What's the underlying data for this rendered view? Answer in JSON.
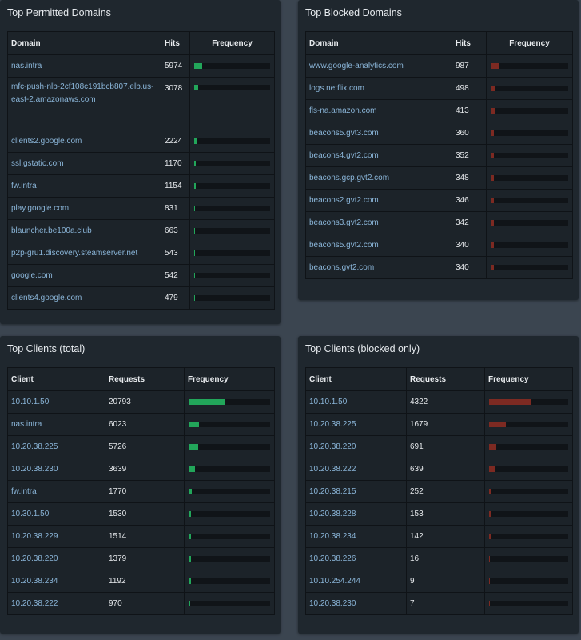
{
  "permitted": {
    "title": "Top Permitted Domains",
    "headers": {
      "col1": "Domain",
      "col2": "Hits",
      "col3": "Frequency"
    },
    "rows": [
      {
        "name": "nas.intra",
        "count": "5974",
        "pct": 0.108
      },
      {
        "name": "mfc-push-nlb-2cf108c191bcb807.elb.us-east-2.amazonaws.com",
        "count": "3078",
        "pct": 0.056
      },
      {
        "name": "clients2.google.com",
        "count": "2224",
        "pct": 0.04
      },
      {
        "name": "ssl.gstatic.com",
        "count": "1170",
        "pct": 0.021
      },
      {
        "name": "fw.intra",
        "count": "1154",
        "pct": 0.021
      },
      {
        "name": "play.google.com",
        "count": "831",
        "pct": 0.015
      },
      {
        "name": "blauncher.be100a.club",
        "count": "663",
        "pct": 0.012
      },
      {
        "name": "p2p-gru1.discovery.steamserver.net",
        "count": "543",
        "pct": 0.01
      },
      {
        "name": "google.com",
        "count": "542",
        "pct": 0.01
      },
      {
        "name": "clients4.google.com",
        "count": "479",
        "pct": 0.009
      }
    ]
  },
  "blocked": {
    "title": "Top Blocked Domains",
    "headers": {
      "col1": "Domain",
      "col2": "Hits",
      "col3": "Frequency"
    },
    "rows": [
      {
        "name": "www.google-analytics.com",
        "count": "987",
        "pct": 0.115
      },
      {
        "name": "logs.netflix.com",
        "count": "498",
        "pct": 0.058
      },
      {
        "name": "fls-na.amazon.com",
        "count": "413",
        "pct": 0.048
      },
      {
        "name": "beacons5.gvt3.com",
        "count": "360",
        "pct": 0.042
      },
      {
        "name": "beacons4.gvt2.com",
        "count": "352",
        "pct": 0.041
      },
      {
        "name": "beacons.gcp.gvt2.com",
        "count": "348",
        "pct": 0.041
      },
      {
        "name": "beacons2.gvt2.com",
        "count": "346",
        "pct": 0.04
      },
      {
        "name": "beacons3.gvt2.com",
        "count": "342",
        "pct": 0.04
      },
      {
        "name": "beacons5.gvt2.com",
        "count": "340",
        "pct": 0.04
      },
      {
        "name": "beacons.gvt2.com",
        "count": "340",
        "pct": 0.04
      }
    ]
  },
  "clients_total": {
    "title": "Top Clients (total)",
    "headers": {
      "col1": "Client",
      "col2": "Requests",
      "col3": "Frequency"
    },
    "rows": [
      {
        "name": "10.10.1.50",
        "count": "20793",
        "pct": 0.44
      },
      {
        "name": "nas.intra",
        "count": "6023",
        "pct": 0.13
      },
      {
        "name": "10.20.38.225",
        "count": "5726",
        "pct": 0.12
      },
      {
        "name": "10.20.38.230",
        "count": "3639",
        "pct": 0.077
      },
      {
        "name": "fw.intra",
        "count": "1770",
        "pct": 0.037
      },
      {
        "name": "10.30.1.50",
        "count": "1530",
        "pct": 0.032
      },
      {
        "name": "10.20.38.229",
        "count": "1514",
        "pct": 0.032
      },
      {
        "name": "10.20.38.220",
        "count": "1379",
        "pct": 0.029
      },
      {
        "name": "10.20.38.234",
        "count": "1192",
        "pct": 0.025
      },
      {
        "name": "10.20.38.222",
        "count": "970",
        "pct": 0.02
      }
    ]
  },
  "clients_blocked": {
    "title": "Top Clients (blocked only)",
    "headers": {
      "col1": "Client",
      "col2": "Requests",
      "col3": "Frequency"
    },
    "rows": [
      {
        "name": "10.10.1.50",
        "count": "4322",
        "pct": 0.54
      },
      {
        "name": "10.20.38.225",
        "count": "1679",
        "pct": 0.21
      },
      {
        "name": "10.20.38.220",
        "count": "691",
        "pct": 0.086
      },
      {
        "name": "10.20.38.222",
        "count": "639",
        "pct": 0.08
      },
      {
        "name": "10.20.38.215",
        "count": "252",
        "pct": 0.031
      },
      {
        "name": "10.20.38.228",
        "count": "153",
        "pct": 0.019
      },
      {
        "name": "10.20.38.234",
        "count": "142",
        "pct": 0.018
      },
      {
        "name": "10.20.38.226",
        "count": "16",
        "pct": 0.004
      },
      {
        "name": "10.10.254.244",
        "count": "9",
        "pct": 0.003
      },
      {
        "name": "10.20.38.230",
        "count": "7",
        "pct": 0.003
      }
    ]
  },
  "colors": {
    "permitted_bar": "#22a65a",
    "blocked_bar": "#7d2a22",
    "link": "#8ab5d8"
  }
}
